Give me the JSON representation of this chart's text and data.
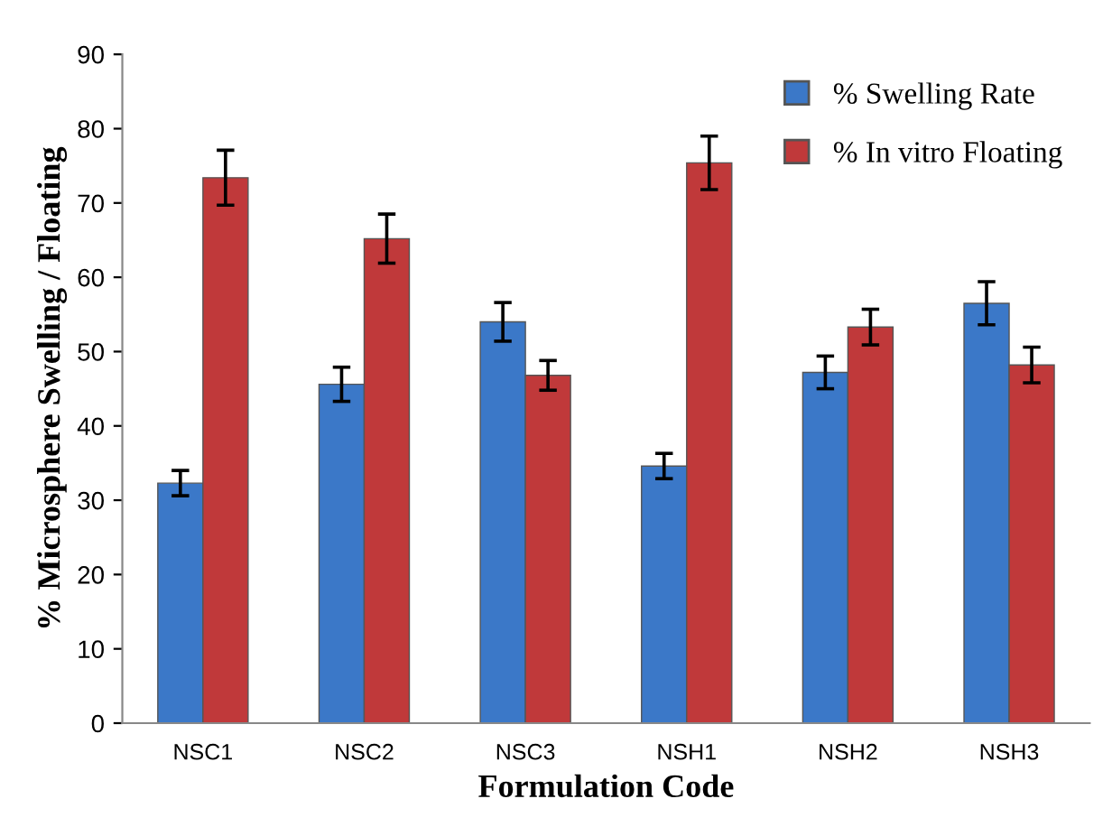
{
  "chart_data": {
    "type": "bar",
    "xlabel": "Formulation Code",
    "ylabel": "% Microsphere Swelling / Floating",
    "categories": [
      "NSC1",
      "NSC2",
      "NSC3",
      "NSH1",
      "NSH2",
      "NSH3"
    ],
    "series": [
      {
        "name": "% Swelling Rate",
        "color": "#3b78c8",
        "values": [
          32.3,
          45.6,
          54.0,
          34.6,
          47.2,
          56.5
        ],
        "errors": [
          1.7,
          2.3,
          2.6,
          1.7,
          2.2,
          2.9
        ]
      },
      {
        "name": "% In vitro Floating",
        "color": "#c0393a",
        "values": [
          73.4,
          65.2,
          46.8,
          75.4,
          53.3,
          48.2
        ],
        "errors": [
          3.7,
          3.3,
          2.0,
          3.6,
          2.4,
          2.4
        ]
      }
    ],
    "ylim": [
      0,
      90
    ],
    "yticks": [
      0,
      10,
      20,
      30,
      40,
      50,
      60,
      70,
      80,
      90
    ],
    "grid": false,
    "legend": "top right"
  }
}
